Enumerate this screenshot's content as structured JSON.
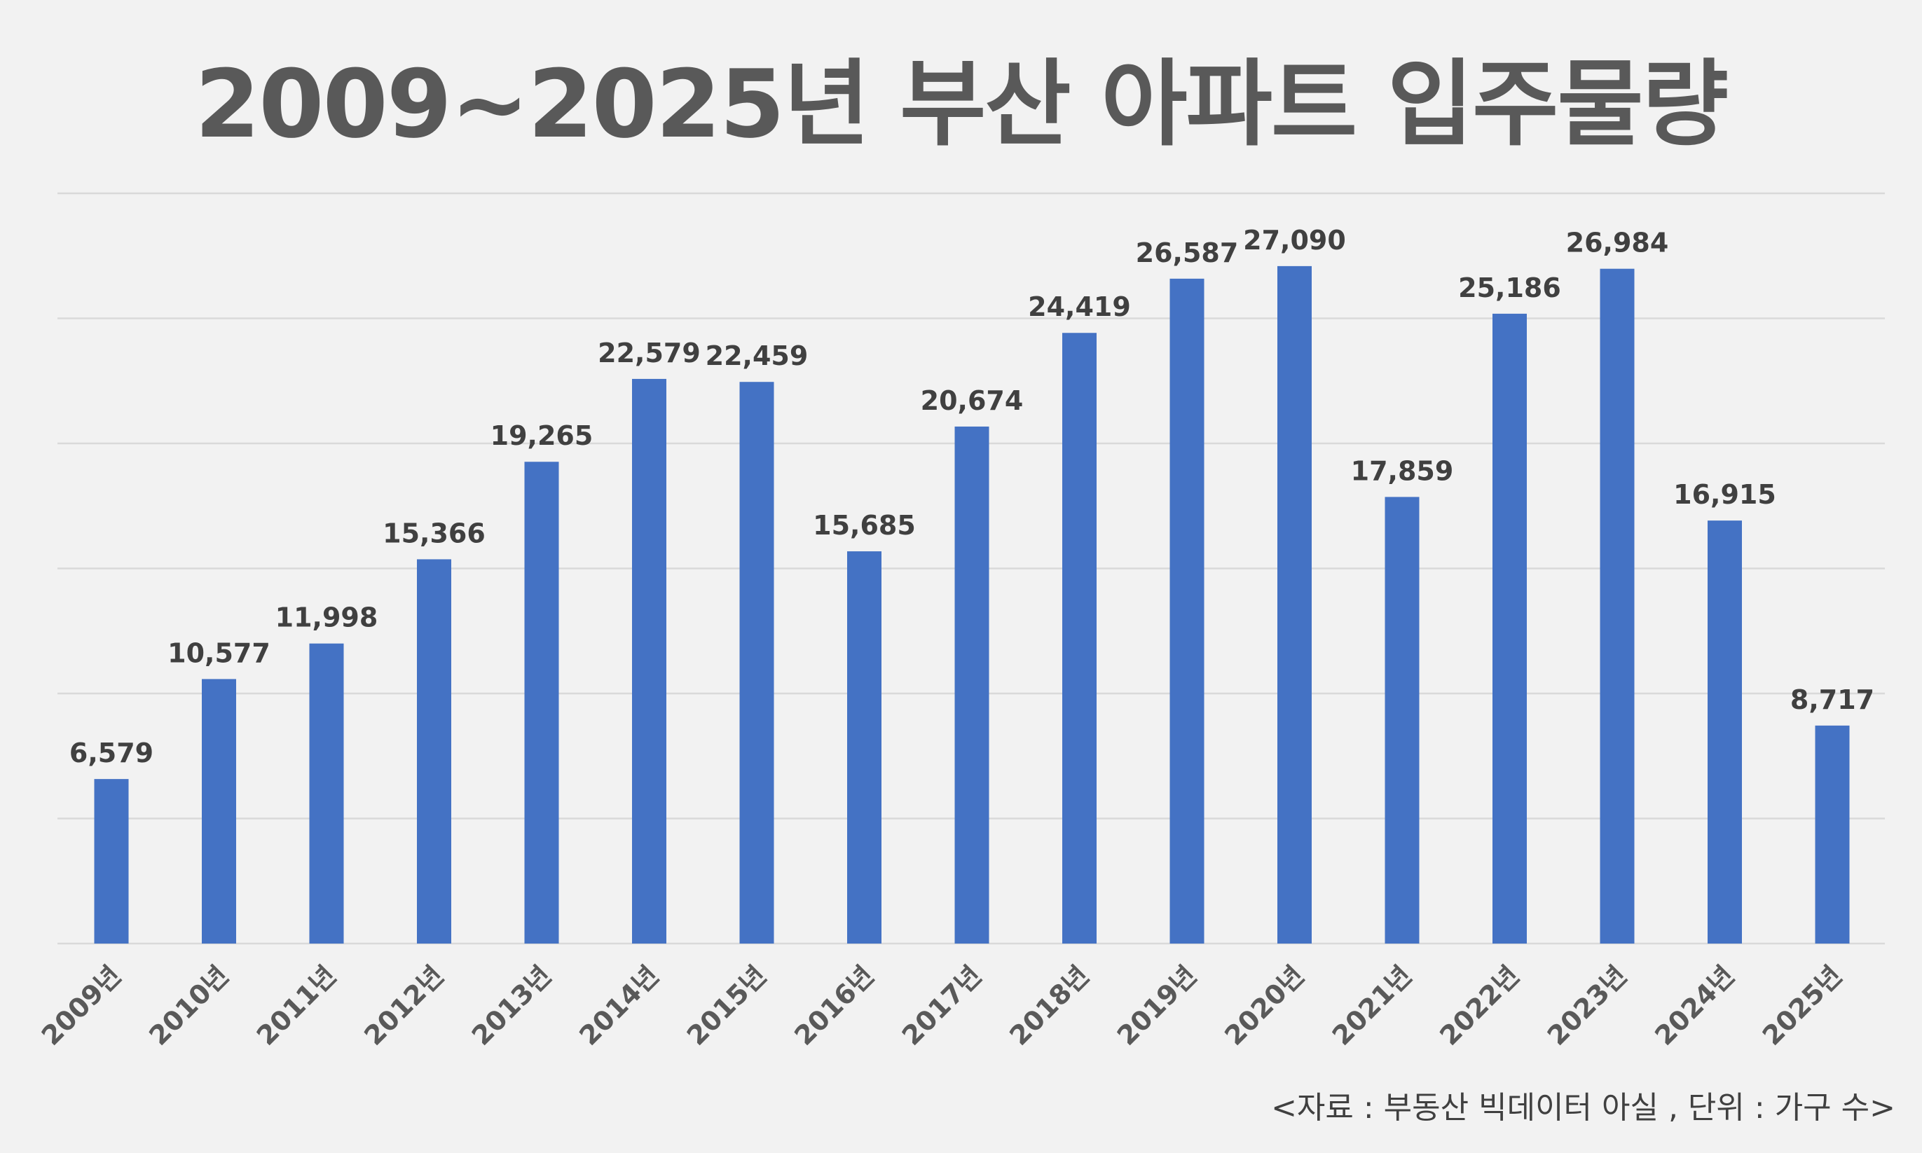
{
  "chart_data": {
    "type": "bar",
    "title": "2009~2025년 부산 아파트 입주물량",
    "categories": [
      "2009년",
      "2010년",
      "2011년",
      "2012년",
      "2013년",
      "2014년",
      "2015년",
      "2016년",
      "2017년",
      "2018년",
      "2019년",
      "2020년",
      "2021년",
      "2022년",
      "2023년",
      "2024년",
      "2025년"
    ],
    "values": [
      6579,
      10577,
      11998,
      15366,
      19265,
      22579,
      22459,
      15685,
      20674,
      24419,
      26587,
      27090,
      17859,
      25186,
      26984,
      16915,
      8717
    ],
    "data_labels": [
      "6,579",
      "10,577",
      "11,998",
      "15,366",
      "19,265",
      "22,579",
      "22,459",
      "15,685",
      "20,674",
      "24,419",
      "26,587",
      "27,090",
      "17,859",
      "25,186",
      "26,984",
      "16,915",
      "8,717"
    ],
    "ylim": [
      0,
      30000
    ],
    "grid_step": 5000,
    "grid": true,
    "y_tick_labels_shown": false,
    "bar_color": "#4472C4",
    "source_note": "<자료 : 부동산 빅데이터 아실 , 단위 : 가구 수>"
  }
}
